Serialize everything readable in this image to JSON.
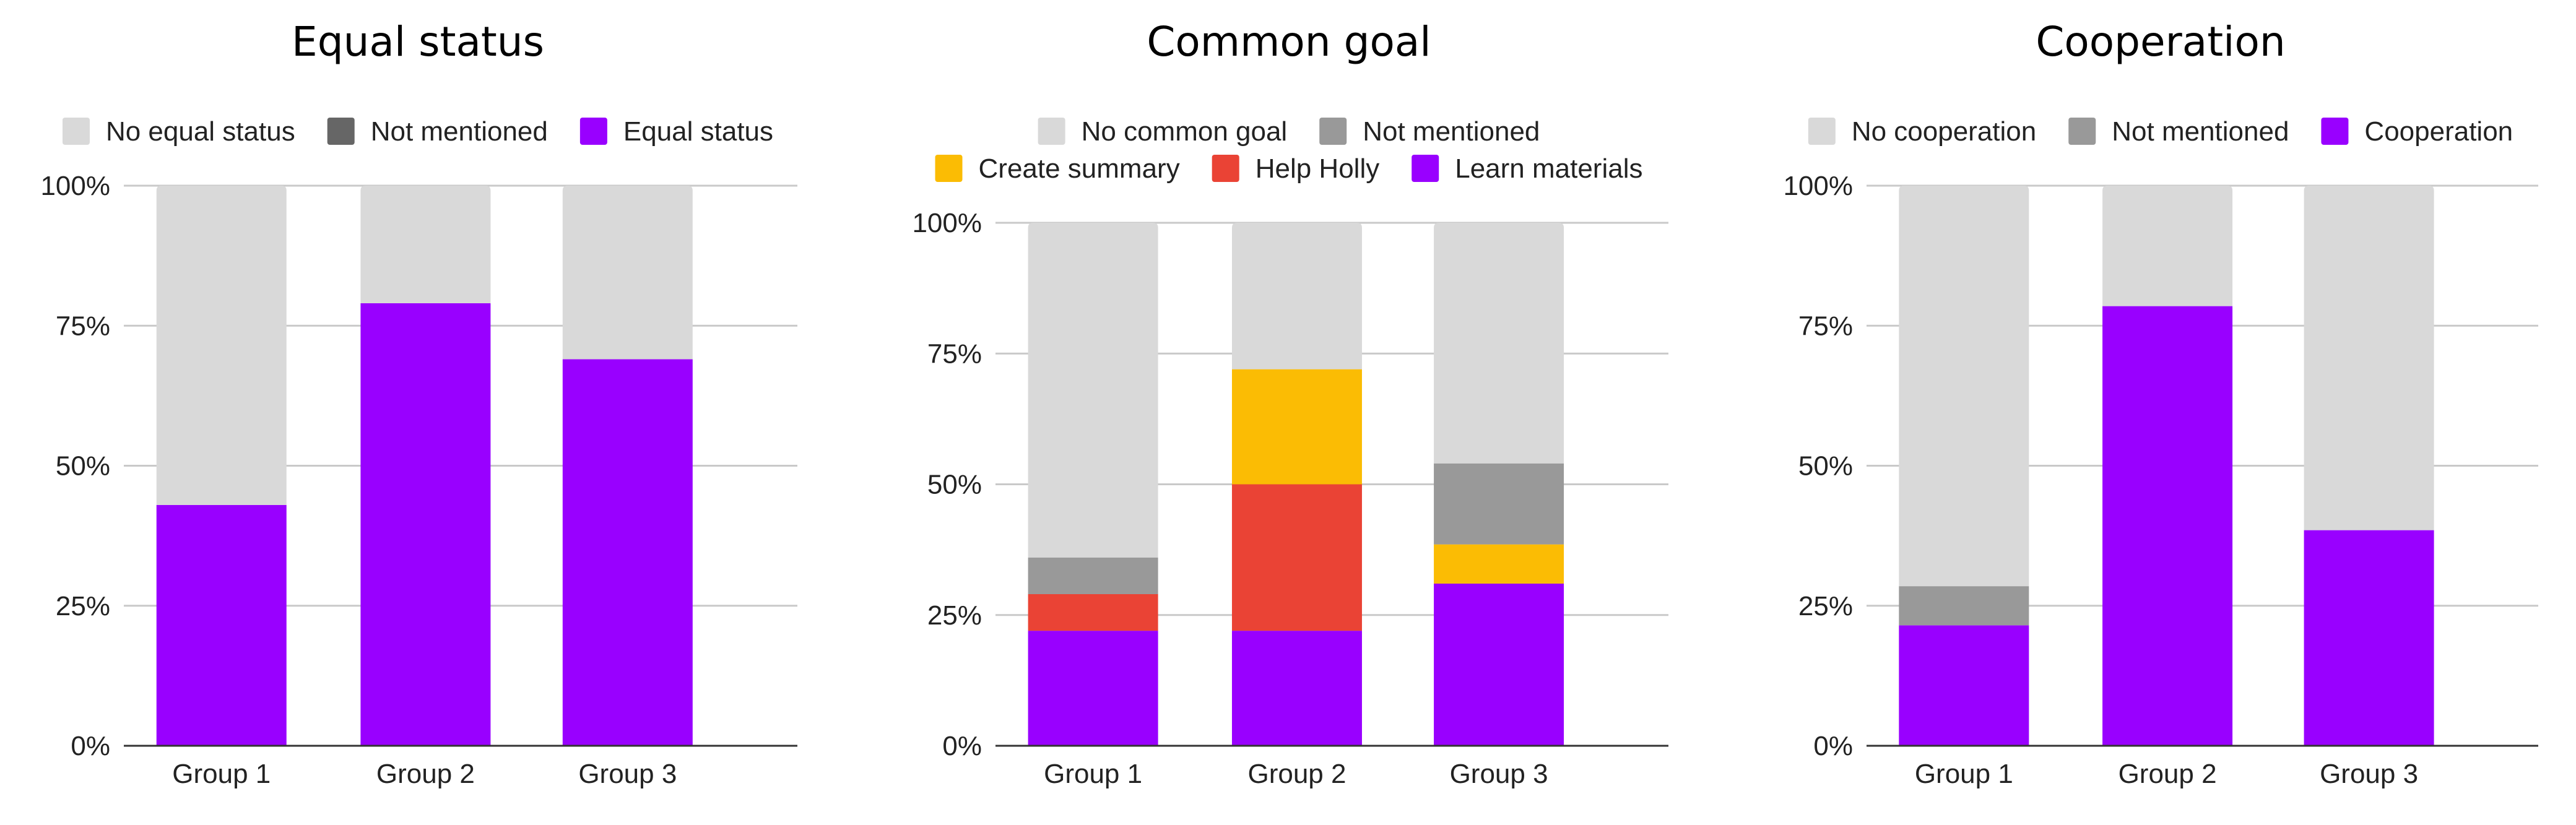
{
  "chart_data": [
    {
      "type": "bar",
      "stacked": true,
      "title": "Equal status",
      "categories": [
        "Group 1",
        "Group 2",
        "Group 3"
      ],
      "y_tick_labels": [
        "0%",
        "25%",
        "50%",
        "75%",
        "100%"
      ],
      "ylim": [
        0,
        100
      ],
      "grid": true,
      "legend": {
        "placement": "top",
        "order": [
          "No equal status",
          "Not mentioned",
          "Equal status"
        ]
      },
      "series": [
        {
          "name": "Equal status",
          "color": "#9900ff",
          "values": [
            43,
            79,
            69
          ]
        },
        {
          "name": "Not mentioned",
          "color": "#666666",
          "values": [
            0,
            0,
            0
          ]
        },
        {
          "name": "No equal status",
          "color": "#d9d9d9",
          "values": [
            57,
            21,
            31
          ]
        }
      ]
    },
    {
      "type": "bar",
      "stacked": true,
      "title": "Common goal",
      "categories": [
        "Group 1",
        "Group 2",
        "Group 3"
      ],
      "y_tick_labels": [
        "0%",
        "25%",
        "50%",
        "75%",
        "100%"
      ],
      "ylim": [
        0,
        100
      ],
      "grid": true,
      "legend": {
        "placement": "top",
        "order": [
          "No common goal",
          "Not mentioned",
          "Create summary",
          "Help Holly",
          "Learn materials"
        ]
      },
      "series": [
        {
          "name": "Learn materials",
          "color": "#9900ff",
          "values": [
            22,
            22,
            31
          ]
        },
        {
          "name": "Help Holly",
          "color": "#ea4335",
          "values": [
            7,
            28,
            0
          ]
        },
        {
          "name": "Create summary",
          "color": "#fbbc04",
          "values": [
            0,
            22,
            7.5
          ]
        },
        {
          "name": "Not mentioned",
          "color": "#999999",
          "values": [
            7,
            0,
            15.5
          ]
        },
        {
          "name": "No common goal",
          "color": "#d9d9d9",
          "values": [
            64,
            28,
            46
          ]
        }
      ]
    },
    {
      "type": "bar",
      "stacked": true,
      "title": "Cooperation",
      "categories": [
        "Group 1",
        "Group 2",
        "Group 3"
      ],
      "y_tick_labels": [
        "0%",
        "25%",
        "50%",
        "75%",
        "100%"
      ],
      "ylim": [
        0,
        100
      ],
      "grid": true,
      "legend": {
        "placement": "top",
        "order": [
          "No cooperation",
          "Not mentioned",
          "Cooperation"
        ]
      },
      "series": [
        {
          "name": "Cooperation",
          "color": "#9900ff",
          "values": [
            21.5,
            78.5,
            38.5
          ]
        },
        {
          "name": "Not mentioned",
          "color": "#999999",
          "values": [
            7,
            0,
            0
          ]
        },
        {
          "name": "No cooperation",
          "color": "#d9d9d9",
          "values": [
            71.5,
            21.5,
            61.5
          ]
        }
      ]
    }
  ]
}
